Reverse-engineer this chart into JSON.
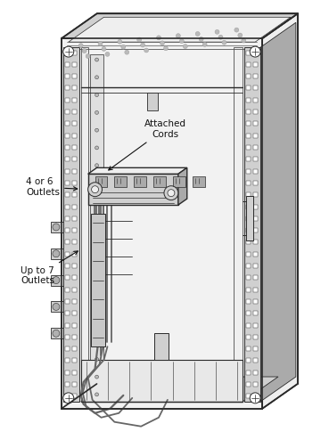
{
  "background_color": "#ffffff",
  "line_color": "#555555",
  "dark_line": "#2a2a2a",
  "light_fill": "#efefef",
  "medium_fill": "#d0d0d0",
  "dark_fill": "#aaaaaa",
  "inner_fill": "#f8f8f8",
  "text_color": "#111111",
  "annotation_1_text": "4 or 6\nOutlets",
  "annotation_2_text": "Up to 7\nOutlets",
  "annotation_3_text": "Attached\nCords",
  "figsize": [
    3.6,
    4.94
  ],
  "dpi": 100
}
